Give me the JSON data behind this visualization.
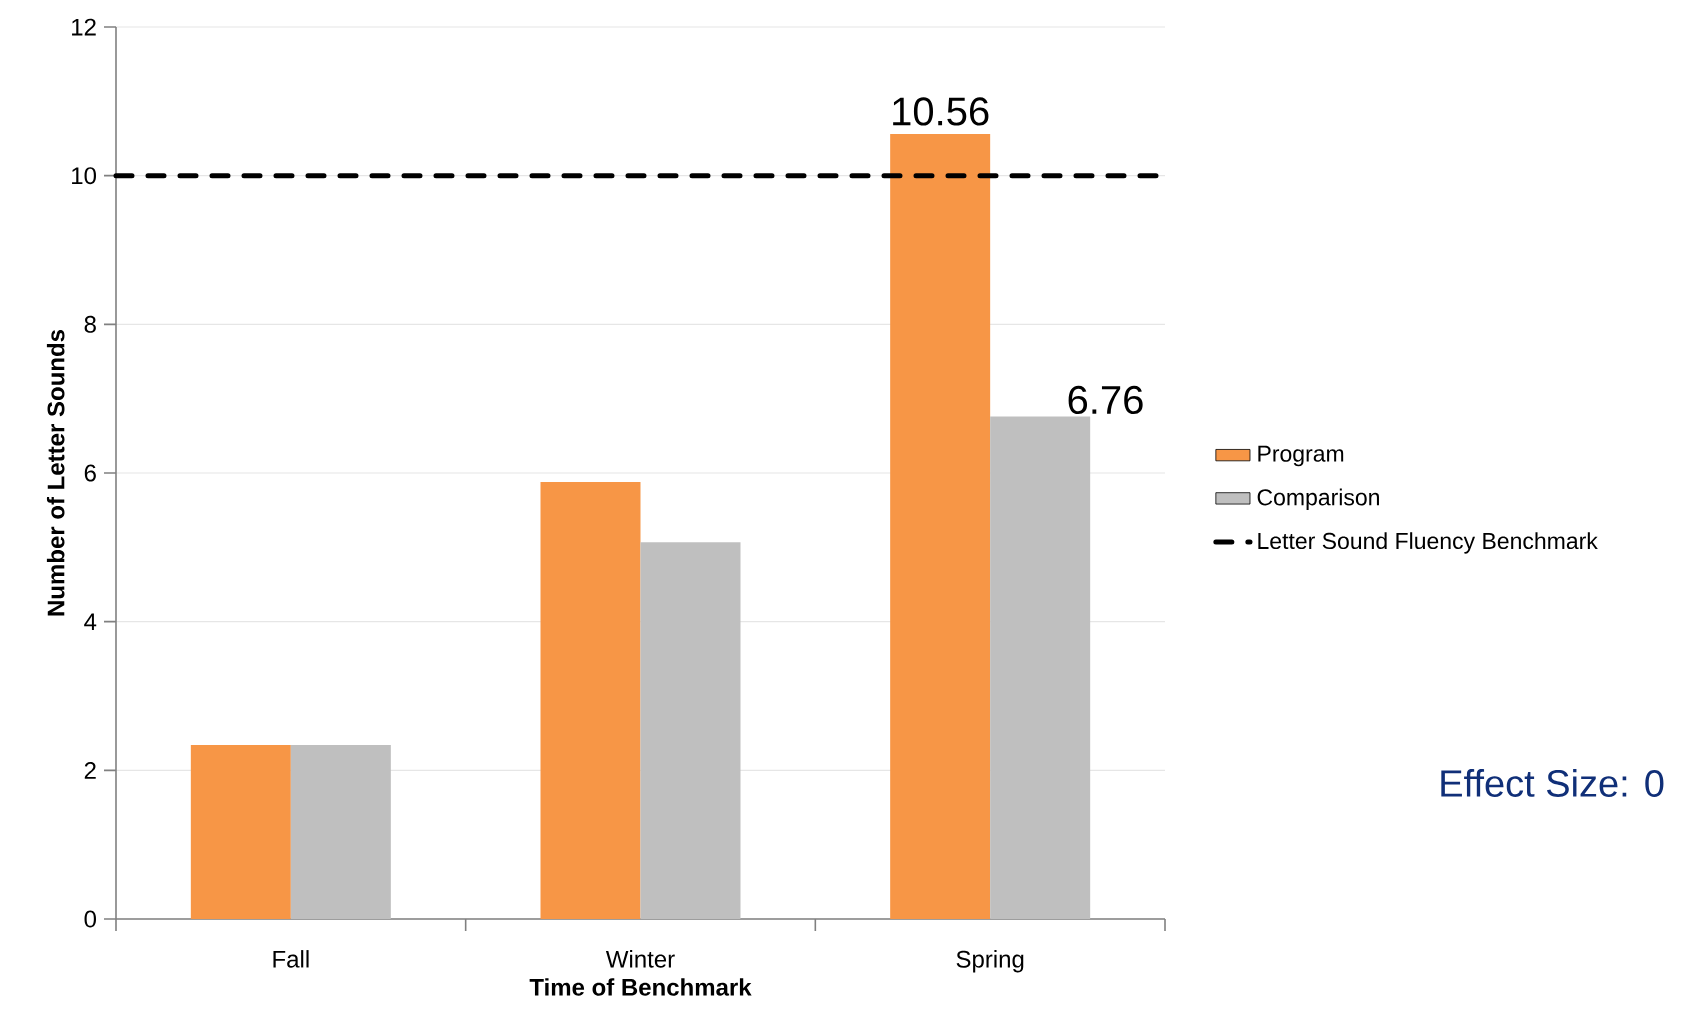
{
  "chart_data": {
    "type": "bar",
    "xlabel": "Time of Benchmark",
    "ylabel": "Number of Letter Sounds",
    "categories": [
      "Fall",
      "Winter",
      "Spring"
    ],
    "series": [
      {
        "name": "Program",
        "color": "#f79646",
        "values": [
          2.34,
          5.88,
          10.56
        ],
        "value_labels": [
          null,
          null,
          "10.56"
        ]
      },
      {
        "name": "Comparison",
        "color": "#bfbfbf",
        "values": [
          2.34,
          5.07,
          6.76
        ],
        "value_labels": [
          null,
          null,
          "6.76"
        ]
      }
    ],
    "ylim": [
      0,
      12
    ],
    "yticks": [
      0,
      2,
      4,
      6,
      8,
      10,
      12
    ],
    "grid": "y",
    "legend": "right",
    "ref_lines": [
      {
        "axis": "y",
        "value": 10,
        "label": "Letter Sound Fluency Benchmark",
        "color": "#000000",
        "line_style": "dashed"
      }
    ],
    "annotations": [
      "Effect Size: 0"
    ]
  }
}
